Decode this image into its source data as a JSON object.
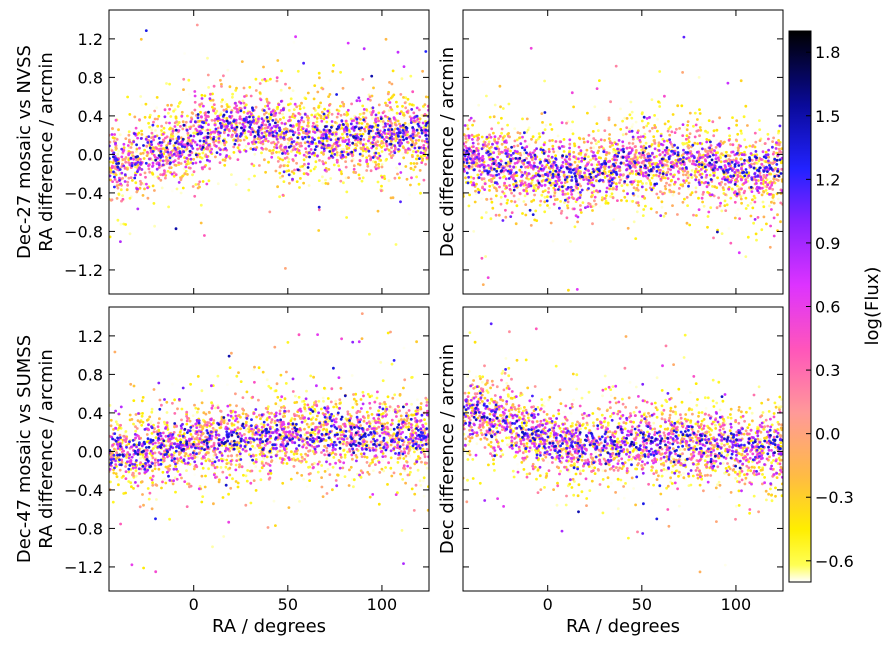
{
  "chart_data": [
    {
      "type": "scatter",
      "panel": "top-left",
      "title": "",
      "ylabel_lines": [
        "Dec-27 mosaic vs NVSS",
        "RA difference / arcmin"
      ],
      "xlabel": "",
      "xlim": [
        -45,
        125
      ],
      "ylim": [
        -1.45,
        1.5
      ],
      "yticks": [
        1.2,
        0.8,
        0.4,
        0.0,
        -0.4,
        -0.8,
        -1.2
      ],
      "ytick_labels": [
        "1.2",
        "0.8",
        "0.4",
        "0.0",
        "−0.4",
        "−0.8",
        "−1.2"
      ],
      "xticks": [
        0,
        50,
        100
      ],
      "xtick_labels": [],
      "trend_x": [
        -45,
        -30,
        -15,
        0,
        15,
        25,
        35,
        50,
        65,
        80,
        95,
        110,
        125
      ],
      "trend_y": [
        -0.1,
        -0.02,
        0.06,
        0.14,
        0.25,
        0.32,
        0.28,
        0.18,
        0.14,
        0.17,
        0.2,
        0.2,
        0.2
      ],
      "scatter_sigma": 0.22,
      "n_points": 2600,
      "color_variable": "log(Flux)"
    },
    {
      "type": "scatter",
      "panel": "top-right",
      "title": "",
      "ylabel_lines": [
        "Dec difference / arcmin"
      ],
      "xlabel": "",
      "xlim": [
        -45,
        125
      ],
      "ylim": [
        -1.45,
        1.5
      ],
      "yticks": [
        1.2,
        0.8,
        0.4,
        0.0,
        -0.4,
        -0.8,
        -1.2
      ],
      "ytick_labels": [],
      "xticks": [
        0,
        50,
        100
      ],
      "xtick_labels": [],
      "trend_x": [
        -45,
        -30,
        -15,
        0,
        15,
        30,
        45,
        60,
        75,
        90,
        105,
        125
      ],
      "trend_y": [
        -0.06,
        -0.08,
        -0.12,
        -0.17,
        -0.2,
        -0.15,
        -0.08,
        -0.06,
        -0.08,
        -0.14,
        -0.17,
        -0.17
      ],
      "scatter_sigma": 0.22,
      "n_points": 2600,
      "color_variable": "log(Flux)"
    },
    {
      "type": "scatter",
      "panel": "bottom-left",
      "title": "",
      "ylabel_lines": [
        "Dec-47 mosaic vs SUMSS",
        "RA difference / arcmin"
      ],
      "xlabel": "RA / degrees",
      "xlim": [
        -45,
        125
      ],
      "ylim": [
        -1.45,
        1.5
      ],
      "yticks": [
        1.2,
        0.8,
        0.4,
        0.0,
        -0.4,
        -0.8,
        -1.2
      ],
      "ytick_labels": [
        "1.2",
        "0.8",
        "0.4",
        "0.0",
        "−0.4",
        "−0.8",
        "−1.2"
      ],
      "xticks": [
        0,
        50,
        100
      ],
      "xtick_labels": [
        "0",
        "50",
        "100"
      ],
      "trend_x": [
        -45,
        -25,
        -10,
        0,
        20,
        40,
        60,
        80,
        100,
        125
      ],
      "trend_y": [
        -0.05,
        0.0,
        0.08,
        0.1,
        0.12,
        0.15,
        0.18,
        0.18,
        0.17,
        0.16
      ],
      "scatter_sigma": 0.22,
      "n_points": 2600,
      "color_variable": "log(Flux)"
    },
    {
      "type": "scatter",
      "panel": "bottom-right",
      "title": "",
      "ylabel_lines": [
        "Dec difference / arcmin"
      ],
      "xlabel": "RA / degrees",
      "xlim": [
        -45,
        125
      ],
      "ylim": [
        -1.45,
        1.5
      ],
      "yticks": [
        1.2,
        0.8,
        0.4,
        0.0,
        -0.4,
        -0.8,
        -1.2
      ],
      "ytick_labels": [],
      "xticks": [
        0,
        50,
        100
      ],
      "xtick_labels": [
        "0",
        "50",
        "100"
      ],
      "trend_x": [
        -45,
        -30,
        -15,
        0,
        15,
        30,
        50,
        70,
        90,
        110,
        125
      ],
      "trend_y": [
        0.42,
        0.35,
        0.22,
        0.1,
        0.04,
        0.08,
        0.12,
        0.1,
        0.06,
        0.04,
        0.04
      ],
      "scatter_sigma": 0.22,
      "n_points": 2600,
      "color_variable": "log(Flux)"
    }
  ],
  "colorbar": {
    "label": "log(Flux)",
    "range": [
      -0.7,
      1.9
    ],
    "ticks": [
      1.8,
      1.5,
      1.2,
      0.9,
      0.6,
      0.3,
      0.0,
      -0.3,
      -0.6
    ],
    "tick_labels": [
      "1.8",
      "1.5",
      "1.2",
      "0.9",
      "0.6",
      "0.3",
      "0.0",
      "−0.3",
      "−0.6"
    ],
    "stops": [
      {
        "value": -0.7,
        "color": "#ffffff"
      },
      {
        "value": -0.62,
        "color": "#ffff55"
      },
      {
        "value": -0.45,
        "color": "#ffee00"
      },
      {
        "value": -0.2,
        "color": "#ffbb44"
      },
      {
        "value": 0.1,
        "color": "#ff9999"
      },
      {
        "value": 0.4,
        "color": "#ff55bb"
      },
      {
        "value": 0.7,
        "color": "#dd33ff"
      },
      {
        "value": 1.0,
        "color": "#8822ff"
      },
      {
        "value": 1.25,
        "color": "#2222ff"
      },
      {
        "value": 1.55,
        "color": "#0a0a99"
      },
      {
        "value": 1.9,
        "color": "#000000"
      }
    ]
  }
}
